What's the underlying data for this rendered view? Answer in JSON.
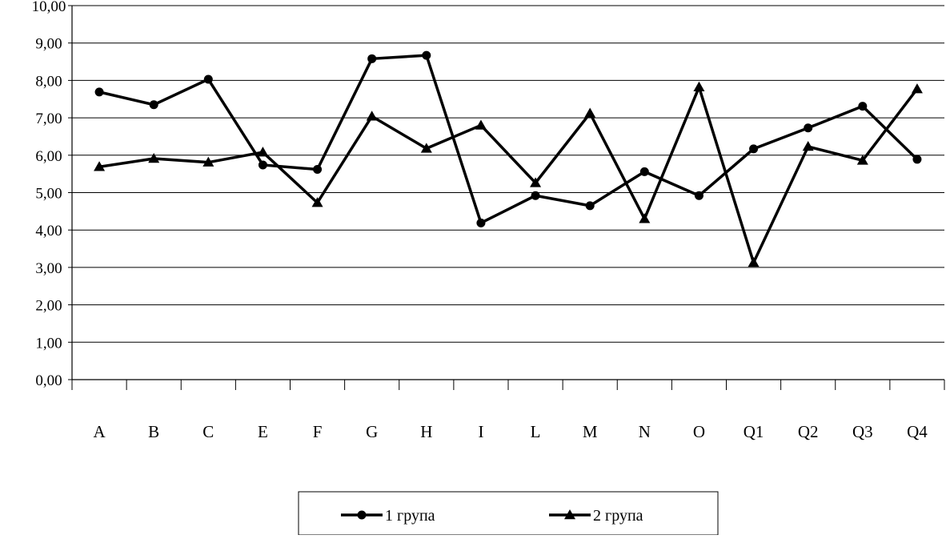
{
  "chart_data": {
    "type": "line",
    "title": "",
    "xlabel": "",
    "ylabel": "",
    "categories": [
      "A",
      "B",
      "C",
      "E",
      "F",
      "G",
      "H",
      "I",
      "L",
      "M",
      "N",
      "O",
      "Q1",
      "Q2",
      "Q3",
      "Q4"
    ],
    "y_tick_labels": [
      "0,00",
      "1,00",
      "2,00",
      "3,00",
      "4,00",
      "5,00",
      "6,00",
      "7,00",
      "8,00",
      "9,00",
      "10,00"
    ],
    "ylim": [
      0,
      10
    ],
    "grid": "horizontal",
    "legend_position": "bottom",
    "series": [
      {
        "name": "1 група",
        "marker": "circle",
        "color": "#000000",
        "values": [
          7.69,
          7.35,
          8.03,
          5.74,
          5.62,
          8.58,
          8.67,
          4.19,
          4.92,
          4.65,
          5.56,
          4.92,
          6.17,
          6.73,
          7.31,
          5.89
        ]
      },
      {
        "name": "2 група",
        "marker": "triangle",
        "color": "#000000",
        "values": [
          5.69,
          5.91,
          5.81,
          6.08,
          4.73,
          7.04,
          6.18,
          6.8,
          5.26,
          7.12,
          4.3,
          7.82,
          3.13,
          6.23,
          5.86,
          7.77
        ]
      }
    ]
  }
}
